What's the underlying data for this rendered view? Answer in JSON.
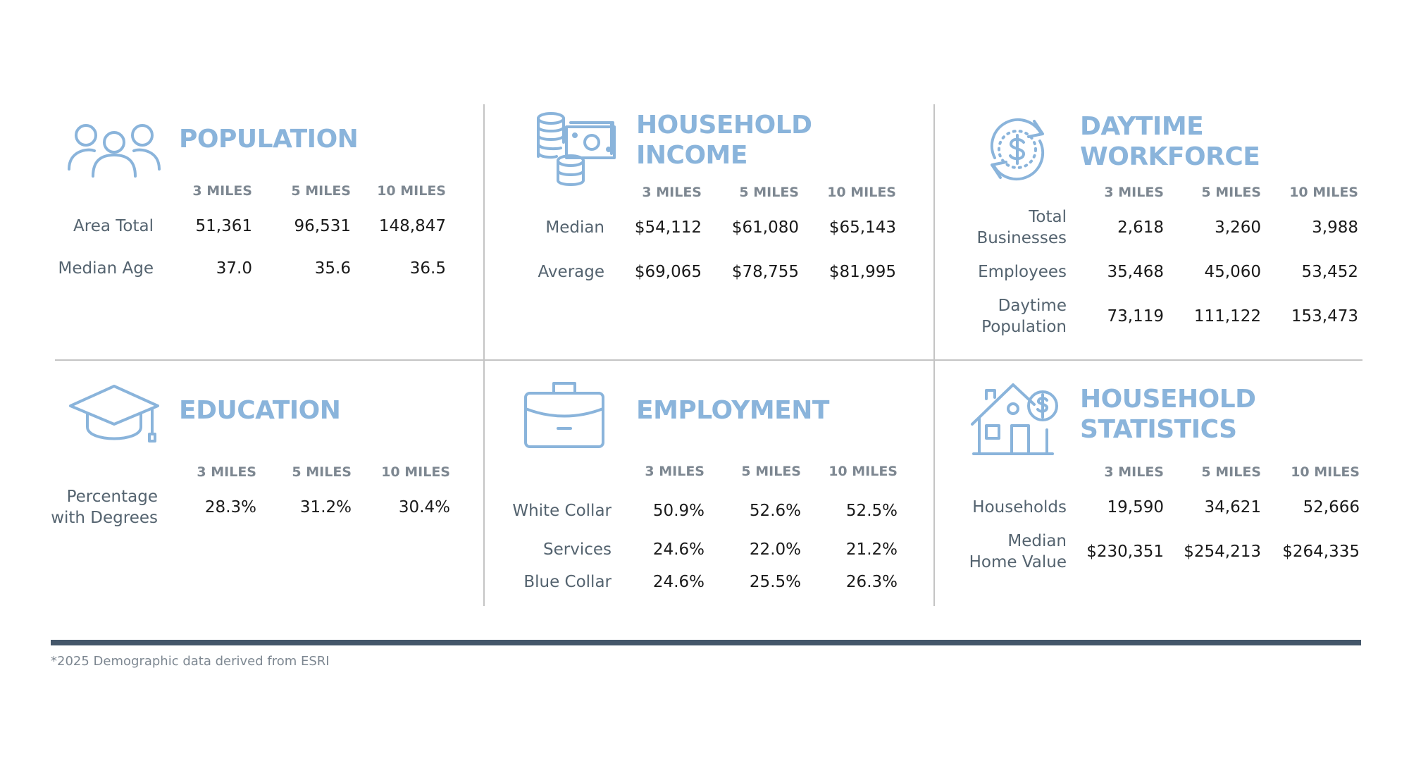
{
  "population": {
    "title": "POPULATION",
    "headers": [
      "3 MILES",
      "5 MILES",
      "10 MILES"
    ],
    "rows": [
      {
        "label": "Area Total",
        "values": [
          "51,361",
          "96,531",
          "148,847"
        ]
      },
      {
        "label": "Median Age",
        "values": [
          "37.0",
          "35.6",
          "36.5"
        ]
      }
    ]
  },
  "household_income": {
    "title_line1": "HOUSEHOLD",
    "title_line2": "INCOME",
    "headers": [
      "3 MILES",
      "5 MILES",
      "10 MILES"
    ],
    "rows": [
      {
        "label": "Median",
        "values": [
          "$54,112",
          "$61,080",
          "$65,143"
        ]
      },
      {
        "label": "Average",
        "values": [
          "$69,065",
          "$78,755",
          "$81,995"
        ]
      }
    ]
  },
  "daytime_workforce": {
    "title_line1": "DAYTIME",
    "title_line2": "WORKFORCE",
    "headers": [
      "3 MILES",
      "5 MILES",
      "10 MILES"
    ],
    "rows": [
      {
        "label_line1": "Total",
        "label_line2": "Businesses",
        "values": [
          "2,618",
          "3,260",
          "3,988"
        ]
      },
      {
        "label": "Employees",
        "values": [
          "35,468",
          "45,060",
          "53,452"
        ]
      },
      {
        "label_line1": "Daytime",
        "label_line2": "Population",
        "values": [
          "73,119",
          "111,122",
          "153,473"
        ]
      }
    ]
  },
  "education": {
    "title": "EDUCATION",
    "headers": [
      "3 MILES",
      "5 MILES",
      "10 MILES"
    ],
    "rows": [
      {
        "label_line1": "Percentage",
        "label_line2": "with Degrees",
        "values": [
          "28.3%",
          "31.2%",
          "30.4%"
        ]
      }
    ]
  },
  "employment": {
    "title": "EMPLOYMENT",
    "headers": [
      "3 MILES",
      "5 MILES",
      "10 MILES"
    ],
    "rows": [
      {
        "label": "White Collar",
        "values": [
          "50.9%",
          "52.6%",
          "52.5%"
        ]
      },
      {
        "label": "Services",
        "values": [
          "24.6%",
          "22.0%",
          "21.2%"
        ]
      },
      {
        "label": "Blue Collar",
        "values": [
          "24.6%",
          "25.5%",
          "26.3%"
        ]
      }
    ]
  },
  "household_statistics": {
    "title_line1": "HOUSEHOLD",
    "title_line2": "STATISTICS",
    "headers": [
      "3 MILES",
      "5 MILES",
      "10 MILES"
    ],
    "rows": [
      {
        "label": "Households",
        "values": [
          "19,590",
          "34,621",
          "52,666"
        ]
      },
      {
        "label_line1": "Median",
        "label_line2": "Home Value",
        "values": [
          "$230,351",
          "$254,213",
          "$264,335"
        ]
      }
    ]
  },
  "footer": {
    "note": "*2025 Demographic data derived from ESRI"
  },
  "colors": {
    "accent": "#8ab4db",
    "label": "#54636f",
    "header": "#7d8791",
    "rule": "#44576a"
  }
}
